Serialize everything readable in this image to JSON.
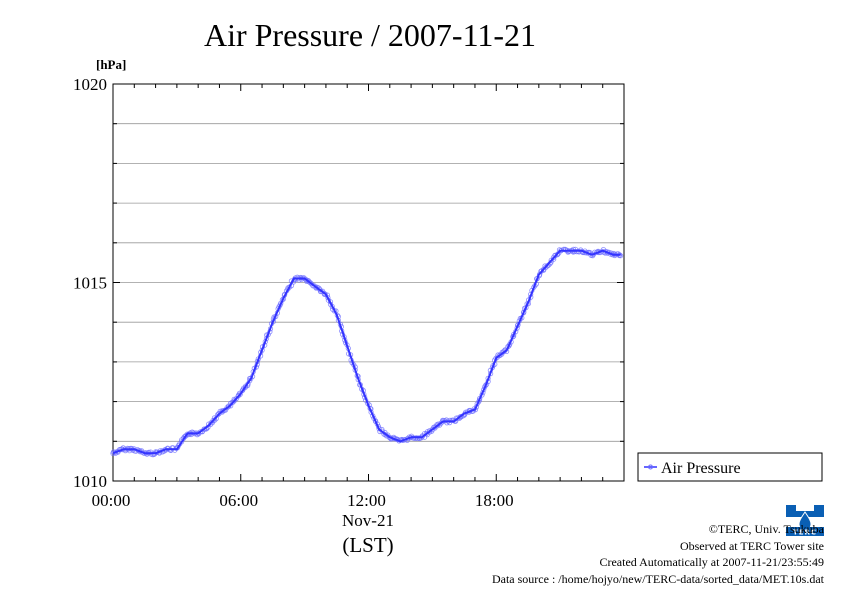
{
  "chart_data": {
    "type": "line",
    "title": "Air Pressure / 2007-11-21",
    "ylabel": "[hPa]",
    "xlabel": "Nov-21",
    "xlabel2": "(LST)",
    "x_ticks": [
      "00:00",
      "06:00",
      "12:00",
      "18:00"
    ],
    "y_ticks": [
      "1010",
      "1015",
      "1020"
    ],
    "ylim": [
      1010,
      1020
    ],
    "xlim_hours": [
      0,
      24
    ],
    "grid": true,
    "legend_position": "right",
    "series": [
      {
        "name": "Air Pressure",
        "color": "#3333ff",
        "x": [
          0.0,
          0.5,
          1.0,
          1.5,
          2.0,
          2.5,
          3.0,
          3.5,
          4.0,
          4.5,
          5.0,
          5.5,
          6.0,
          6.5,
          7.0,
          7.5,
          8.0,
          8.5,
          9.0,
          9.5,
          10.0,
          10.5,
          11.0,
          11.5,
          12.0,
          12.5,
          13.0,
          13.5,
          14.0,
          14.5,
          15.0,
          15.5,
          16.0,
          16.5,
          17.0,
          17.5,
          18.0,
          18.5,
          19.0,
          19.5,
          20.0,
          20.5,
          21.0,
          21.5,
          22.0,
          22.5,
          23.0,
          23.5
        ],
        "values": [
          1010.7,
          1010.8,
          1010.8,
          1010.7,
          1010.7,
          1010.8,
          1010.8,
          1011.2,
          1011.2,
          1011.4,
          1011.7,
          1011.9,
          1012.2,
          1012.6,
          1013.3,
          1014.0,
          1014.6,
          1015.1,
          1015.1,
          1014.9,
          1014.7,
          1014.2,
          1013.4,
          1012.6,
          1011.9,
          1011.3,
          1011.1,
          1011.0,
          1011.1,
          1011.1,
          1011.3,
          1011.5,
          1011.5,
          1011.7,
          1011.8,
          1012.4,
          1013.1,
          1013.3,
          1013.9,
          1014.5,
          1015.2,
          1015.5,
          1015.8,
          1015.8,
          1015.8,
          1015.7,
          1015.8,
          1015.7
        ]
      }
    ]
  },
  "credits": {
    "line1": "©TERC, Univ. Tsukuba",
    "line2": "Observed at TERC Tower site",
    "line3": "Created Automatically at 2007-11-21/23:55:49",
    "line4": "Data source : /home/hojyo/new/TERC-data/sorted_data/MET.10s.dat"
  },
  "logo": {
    "name": "terc-logo",
    "text": "TERC",
    "color": "#0a5fb4"
  }
}
